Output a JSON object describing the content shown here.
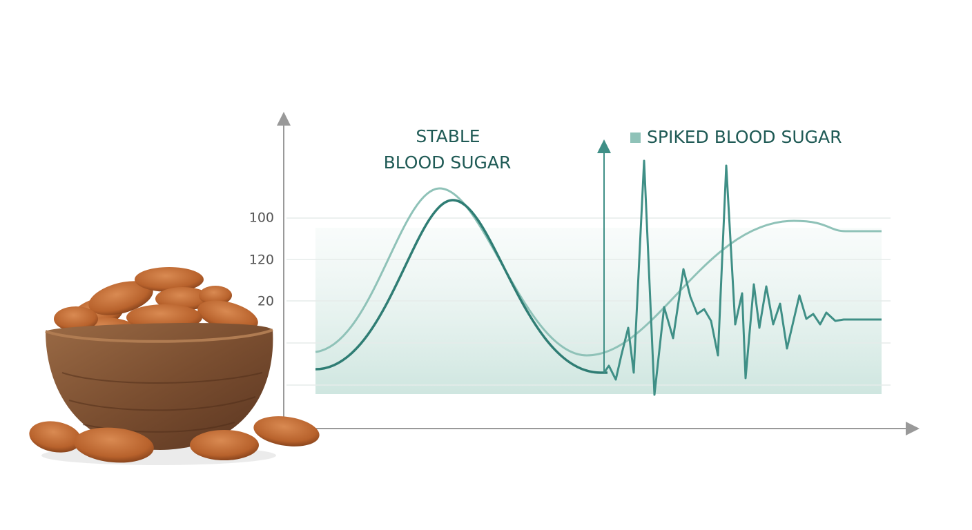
{
  "stable_label": [
    "STABLE",
    "BLOOD SUGAR"
  ],
  "spiked_label": "SPIKED BLOOD SUGAR",
  "axis_labels": [
    "100",
    "120",
    "20"
  ]
}
